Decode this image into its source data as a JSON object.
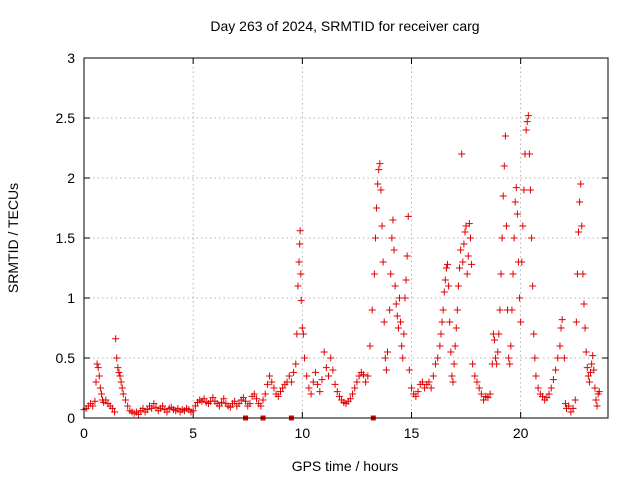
{
  "chart_data": {
    "type": "scatter",
    "title": "Day 263 of 2024, SRMTID for receiver carg",
    "xlabel": "GPS time / hours",
    "ylabel": "SRMTID / TECUs",
    "xlim": [
      0,
      24
    ],
    "ylim": [
      0,
      3
    ],
    "xticks": [
      0,
      5,
      10,
      15,
      20
    ],
    "xtick_labels": [
      "0",
      "5",
      "10",
      "15",
      "20"
    ],
    "yticks": [
      0,
      0.5,
      1,
      1.5,
      2,
      2.5,
      3
    ],
    "ytick_labels": [
      "0",
      "0.5",
      "1",
      "1.5",
      "2",
      "2.5",
      "3"
    ],
    "grid": true,
    "marker": "plus",
    "color": "#e00000",
    "series": [
      {
        "name": "SRMTID",
        "points": [
          [
            0.0,
            0.07
          ],
          [
            0.1,
            0.08
          ],
          [
            0.2,
            0.1
          ],
          [
            0.3,
            0.12
          ],
          [
            0.4,
            0.1
          ],
          [
            0.5,
            0.14
          ],
          [
            0.55,
            0.3
          ],
          [
            0.6,
            0.45
          ],
          [
            0.65,
            0.42
          ],
          [
            0.7,
            0.35
          ],
          [
            0.75,
            0.25
          ],
          [
            0.8,
            0.2
          ],
          [
            0.85,
            0.15
          ],
          [
            0.9,
            0.13
          ],
          [
            1.0,
            0.15
          ],
          [
            1.1,
            0.12
          ],
          [
            1.2,
            0.1
          ],
          [
            1.3,
            0.08
          ],
          [
            1.4,
            0.05
          ],
          [
            1.45,
            0.66
          ],
          [
            1.5,
            0.5
          ],
          [
            1.55,
            0.42
          ],
          [
            1.6,
            0.38
          ],
          [
            1.65,
            0.35
          ],
          [
            1.7,
            0.3
          ],
          [
            1.75,
            0.25
          ],
          [
            1.8,
            0.2
          ],
          [
            1.9,
            0.15
          ],
          [
            2.0,
            0.1
          ],
          [
            2.1,
            0.06
          ],
          [
            2.2,
            0.05
          ],
          [
            2.3,
            0.04
          ],
          [
            2.4,
            0.05
          ],
          [
            2.5,
            0.03
          ],
          [
            2.6,
            0.06
          ],
          [
            2.7,
            0.08
          ],
          [
            2.8,
            0.05
          ],
          [
            2.9,
            0.07
          ],
          [
            3.0,
            0.1
          ],
          [
            3.1,
            0.08
          ],
          [
            3.2,
            0.12
          ],
          [
            3.3,
            0.09
          ],
          [
            3.4,
            0.06
          ],
          [
            3.5,
            0.08
          ],
          [
            3.6,
            0.1
          ],
          [
            3.7,
            0.07
          ],
          [
            3.8,
            0.05
          ],
          [
            3.9,
            0.08
          ],
          [
            4.0,
            0.09
          ],
          [
            4.1,
            0.07
          ],
          [
            4.2,
            0.06
          ],
          [
            4.3,
            0.08
          ],
          [
            4.4,
            0.05
          ],
          [
            4.5,
            0.07
          ],
          [
            4.6,
            0.06
          ],
          [
            4.7,
            0.08
          ],
          [
            4.8,
            0.07
          ],
          [
            4.9,
            0.05
          ],
          [
            5.0,
            0.06
          ],
          [
            5.1,
            0.1
          ],
          [
            5.2,
            0.13
          ],
          [
            5.3,
            0.15
          ],
          [
            5.4,
            0.14
          ],
          [
            5.5,
            0.16
          ],
          [
            5.6,
            0.13
          ],
          [
            5.7,
            0.12
          ],
          [
            5.8,
            0.14
          ],
          [
            5.9,
            0.17
          ],
          [
            6.0,
            0.14
          ],
          [
            6.1,
            0.12
          ],
          [
            6.2,
            0.1
          ],
          [
            6.3,
            0.13
          ],
          [
            6.4,
            0.16
          ],
          [
            6.5,
            0.12
          ],
          [
            6.6,
            0.1
          ],
          [
            6.7,
            0.09
          ],
          [
            6.8,
            0.12
          ],
          [
            6.9,
            0.14
          ],
          [
            7.0,
            0.1
          ],
          [
            7.1,
            0.12
          ],
          [
            7.2,
            0.15
          ],
          [
            7.3,
            0.17
          ],
          [
            7.4,
            0.14
          ],
          [
            7.5,
            0.1
          ],
          [
            7.6,
            0.12
          ],
          [
            7.7,
            0.18
          ],
          [
            7.8,
            0.2
          ],
          [
            7.9,
            0.16
          ],
          [
            8.0,
            0.12
          ],
          [
            8.1,
            0.1
          ],
          [
            8.2,
            0.15
          ],
          [
            8.3,
            0.2
          ],
          [
            8.4,
            0.28
          ],
          [
            8.5,
            0.35
          ],
          [
            8.6,
            0.3
          ],
          [
            8.7,
            0.25
          ],
          [
            8.8,
            0.2
          ],
          [
            8.9,
            0.18
          ],
          [
            9.0,
            0.22
          ],
          [
            9.1,
            0.25
          ],
          [
            9.2,
            0.28
          ],
          [
            9.3,
            0.3
          ],
          [
            9.4,
            0.35
          ],
          [
            9.5,
            0.3
          ],
          [
            9.6,
            0.38
          ],
          [
            9.7,
            0.45
          ],
          [
            9.75,
            0.7
          ],
          [
            9.8,
            1.1
          ],
          [
            9.85,
            1.3
          ],
          [
            9.88,
            1.45
          ],
          [
            9.9,
            1.56
          ],
          [
            9.93,
            1.2
          ],
          [
            9.95,
            0.98
          ],
          [
            10.0,
            0.75
          ],
          [
            10.05,
            0.7
          ],
          [
            10.1,
            0.5
          ],
          [
            10.2,
            0.35
          ],
          [
            10.3,
            0.25
          ],
          [
            10.4,
            0.2
          ],
          [
            10.5,
            0.3
          ],
          [
            10.6,
            0.38
          ],
          [
            10.7,
            0.28
          ],
          [
            10.8,
            0.22
          ],
          [
            10.9,
            0.32
          ],
          [
            11.0,
            0.55
          ],
          [
            11.1,
            0.42
          ],
          [
            11.2,
            0.35
          ],
          [
            11.3,
            0.5
          ],
          [
            11.4,
            0.4
          ],
          [
            11.5,
            0.28
          ],
          [
            11.6,
            0.22
          ],
          [
            11.7,
            0.18
          ],
          [
            11.8,
            0.15
          ],
          [
            11.9,
            0.13
          ],
          [
            12.0,
            0.12
          ],
          [
            12.1,
            0.14
          ],
          [
            12.2,
            0.16
          ],
          [
            12.3,
            0.2
          ],
          [
            12.4,
            0.25
          ],
          [
            12.5,
            0.3
          ],
          [
            12.6,
            0.35
          ],
          [
            12.7,
            0.38
          ],
          [
            12.8,
            0.36
          ],
          [
            12.9,
            0.3
          ],
          [
            13.0,
            0.35
          ],
          [
            13.1,
            0.6
          ],
          [
            13.2,
            0.9
          ],
          [
            13.3,
            1.2
          ],
          [
            13.35,
            1.5
          ],
          [
            13.4,
            1.75
          ],
          [
            13.45,
            1.95
          ],
          [
            13.5,
            2.07
          ],
          [
            13.55,
            2.12
          ],
          [
            13.6,
            1.9
          ],
          [
            13.65,
            1.6
          ],
          [
            13.7,
            1.3
          ],
          [
            13.75,
            0.8
          ],
          [
            13.8,
            0.5
          ],
          [
            13.85,
            0.4
          ],
          [
            13.9,
            0.55
          ],
          [
            14.0,
            0.9
          ],
          [
            14.05,
            1.2
          ],
          [
            14.1,
            1.5
          ],
          [
            14.15,
            1.65
          ],
          [
            14.2,
            1.4
          ],
          [
            14.25,
            1.1
          ],
          [
            14.3,
            0.95
          ],
          [
            14.35,
            0.85
          ],
          [
            14.4,
            0.75
          ],
          [
            14.45,
            1.0
          ],
          [
            14.5,
            0.8
          ],
          [
            14.55,
            0.6
          ],
          [
            14.6,
            0.5
          ],
          [
            14.65,
            0.7
          ],
          [
            14.7,
            1.0
          ],
          [
            14.75,
            1.15
          ],
          [
            14.8,
            1.35
          ],
          [
            14.85,
            1.68
          ],
          [
            14.9,
            0.4
          ],
          [
            15.0,
            0.25
          ],
          [
            15.1,
            0.2
          ],
          [
            15.2,
            0.18
          ],
          [
            15.3,
            0.22
          ],
          [
            15.4,
            0.28
          ],
          [
            15.5,
            0.3
          ],
          [
            15.6,
            0.25
          ],
          [
            15.7,
            0.28
          ],
          [
            15.8,
            0.3
          ],
          [
            15.9,
            0.25
          ],
          [
            16.0,
            0.35
          ],
          [
            16.1,
            0.45
          ],
          [
            16.2,
            0.5
          ],
          [
            16.3,
            0.6
          ],
          [
            16.35,
            0.7
          ],
          [
            16.4,
            0.8
          ],
          [
            16.45,
            0.9
          ],
          [
            16.5,
            1.05
          ],
          [
            16.55,
            1.15
          ],
          [
            16.6,
            1.25
          ],
          [
            16.65,
            1.28
          ],
          [
            16.7,
            1.1
          ],
          [
            16.75,
            0.8
          ],
          [
            16.8,
            0.55
          ],
          [
            16.85,
            0.35
          ],
          [
            16.9,
            0.3
          ],
          [
            16.95,
            0.45
          ],
          [
            17.0,
            0.6
          ],
          [
            17.05,
            0.75
          ],
          [
            17.1,
            0.9
          ],
          [
            17.15,
            1.1
          ],
          [
            17.2,
            1.25
          ],
          [
            17.25,
            1.4
          ],
          [
            17.3,
            2.2
          ],
          [
            17.35,
            1.3
          ],
          [
            17.4,
            1.45
          ],
          [
            17.45,
            1.55
          ],
          [
            17.5,
            1.6
          ],
          [
            17.55,
            1.2
          ],
          [
            17.6,
            1.35
          ],
          [
            17.65,
            1.62
          ],
          [
            17.7,
            1.5
          ],
          [
            17.75,
            1.28
          ],
          [
            17.8,
            0.45
          ],
          [
            17.9,
            0.35
          ],
          [
            18.0,
            0.3
          ],
          [
            18.1,
            0.25
          ],
          [
            18.2,
            0.2
          ],
          [
            18.3,
            0.15
          ],
          [
            18.4,
            0.18
          ],
          [
            18.5,
            0.17
          ],
          [
            18.6,
            0.2
          ],
          [
            18.7,
            0.45
          ],
          [
            18.75,
            0.7
          ],
          [
            18.8,
            0.65
          ],
          [
            18.85,
            0.5
          ],
          [
            18.9,
            0.45
          ],
          [
            18.95,
            0.55
          ],
          [
            19.0,
            0.7
          ],
          [
            19.05,
            0.9
          ],
          [
            19.1,
            1.2
          ],
          [
            19.15,
            1.5
          ],
          [
            19.2,
            1.85
          ],
          [
            19.25,
            2.1
          ],
          [
            19.3,
            2.35
          ],
          [
            19.35,
            1.6
          ],
          [
            19.4,
            0.9
          ],
          [
            19.45,
            0.5
          ],
          [
            19.5,
            0.45
          ],
          [
            19.55,
            0.6
          ],
          [
            19.6,
            0.9
          ],
          [
            19.65,
            1.2
          ],
          [
            19.7,
            1.5
          ],
          [
            19.75,
            1.8
          ],
          [
            19.8,
            1.92
          ],
          [
            19.85,
            1.7
          ],
          [
            19.9,
            1.3
          ],
          [
            19.95,
            1.0
          ],
          [
            20.0,
            0.8
          ],
          [
            20.05,
            1.3
          ],
          [
            20.1,
            1.6
          ],
          [
            20.15,
            1.9
          ],
          [
            20.2,
            2.2
          ],
          [
            20.25,
            2.4
          ],
          [
            20.3,
            2.47
          ],
          [
            20.35,
            2.52
          ],
          [
            20.4,
            2.2
          ],
          [
            20.45,
            1.9
          ],
          [
            20.5,
            1.5
          ],
          [
            20.55,
            1.1
          ],
          [
            20.6,
            0.7
          ],
          [
            20.65,
            0.5
          ],
          [
            20.7,
            0.35
          ],
          [
            20.8,
            0.25
          ],
          [
            20.9,
            0.2
          ],
          [
            21.0,
            0.18
          ],
          [
            21.1,
            0.15
          ],
          [
            21.2,
            0.17
          ],
          [
            21.3,
            0.2
          ],
          [
            21.4,
            0.25
          ],
          [
            21.5,
            0.32
          ],
          [
            21.6,
            0.4
          ],
          [
            21.7,
            0.5
          ],
          [
            21.8,
            0.6
          ],
          [
            21.85,
            0.75
          ],
          [
            21.9,
            0.82
          ],
          [
            22.0,
            0.5
          ],
          [
            22.05,
            0.12
          ],
          [
            22.1,
            0.08
          ],
          [
            22.2,
            0.1
          ],
          [
            22.3,
            0.05
          ],
          [
            22.4,
            0.08
          ],
          [
            22.5,
            0.15
          ],
          [
            22.55,
            0.8
          ],
          [
            22.6,
            1.2
          ],
          [
            22.65,
            1.55
          ],
          [
            22.7,
            1.8
          ],
          [
            22.75,
            1.95
          ],
          [
            22.8,
            1.6
          ],
          [
            22.85,
            1.2
          ],
          [
            22.9,
            0.95
          ],
          [
            22.95,
            0.75
          ],
          [
            23.0,
            0.55
          ],
          [
            23.05,
            0.42
          ],
          [
            23.1,
            0.35
          ],
          [
            23.15,
            0.3
          ],
          [
            23.2,
            0.38
          ],
          [
            23.25,
            0.45
          ],
          [
            23.3,
            0.52
          ],
          [
            23.35,
            0.4
          ],
          [
            23.4,
            0.25
          ],
          [
            23.45,
            0.15
          ],
          [
            23.5,
            0.1
          ],
          [
            23.55,
            0.2
          ],
          [
            23.6,
            0.22
          ]
        ],
        "bottom_markers": [
          7.4,
          8.2,
          9.5,
          13.25
        ]
      }
    ]
  }
}
